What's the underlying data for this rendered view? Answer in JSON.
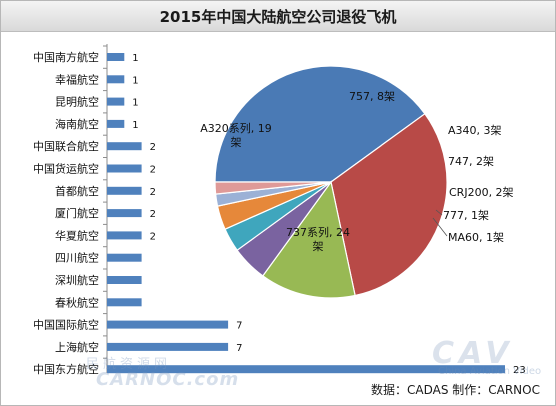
{
  "chart_data": [
    {
      "type": "bar",
      "orientation": "horizontal",
      "title": "2015年中国大陆航空公司退役飞机",
      "categories": [
        "中国南方航空",
        "幸福航空",
        "昆明航空",
        "海南航空",
        "中国联合航空",
        "中国货运航空",
        "首都航空",
        "厦门航空",
        "华夏航空",
        "四川航空",
        "深圳航空",
        "春秋航空",
        "中国国际航空",
        "上海航空",
        "中国东方航空"
      ],
      "values": [
        1,
        1,
        1,
        1,
        2,
        2,
        2,
        2,
        2,
        2,
        2,
        2,
        7,
        7,
        23
      ],
      "data_labels": [
        "1",
        "1",
        "1",
        "1",
        "2",
        "2",
        "2",
        "2",
        "2",
        "",
        "",
        "",
        "7",
        "7",
        "23"
      ],
      "bar_color": "#4f81bd",
      "xlim": [
        0,
        23
      ],
      "grid": false,
      "legend": "none"
    },
    {
      "type": "pie",
      "labels": [
        "737系列, 24架",
        "A320系列, 19架",
        "757, 8架",
        "A340, 3架",
        "747, 2架",
        "CRJ200, 2架",
        "777, 1架",
        "MA60, 1架"
      ],
      "values": [
        24,
        19,
        8,
        3,
        2,
        2,
        1,
        1
      ],
      "colors": [
        "#4a7ab5",
        "#b84a47",
        "#98b954",
        "#7a63a0",
        "#3fa6bd",
        "#e6883a",
        "#9bb1d6",
        "#df9a98"
      ],
      "legend": "none"
    }
  ],
  "footer": {
    "source": "数据：CADAS   制作：CARNOC"
  },
  "watermark": {
    "cn": "民航资源网",
    "en": "CARNOC.com",
    "cav": "CAV",
    "cav_sub": "China Aviation Video"
  }
}
